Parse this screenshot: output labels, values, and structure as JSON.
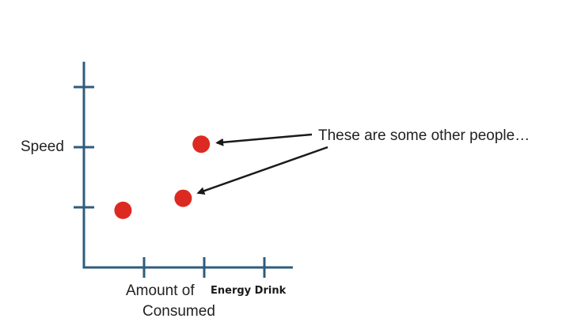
{
  "chart_data": {
    "type": "scatter",
    "ylabel": "Speed",
    "xlabel": {
      "line1_prefix": "Amount of",
      "line1_emphasis": "Energy Drink",
      "line2": "Consumed"
    },
    "xlim": [
      0,
      4
    ],
    "ylim": [
      0,
      3
    ],
    "x_ticks": [
      1,
      2,
      3
    ],
    "y_ticks": [
      1,
      2,
      3
    ],
    "y_tick_labels": {
      "2": "Speed"
    },
    "points": [
      {
        "x": 0.65,
        "y": 0.95
      },
      {
        "x": 1.65,
        "y": 1.15
      },
      {
        "x": 1.95,
        "y": 2.05
      }
    ],
    "annotation": {
      "text": "These are some other people…",
      "targets": [
        2,
        1
      ]
    },
    "colors": {
      "axis": "#2f5d7c",
      "point": "#dc2a22",
      "arrow": "#1a1a1a"
    }
  }
}
